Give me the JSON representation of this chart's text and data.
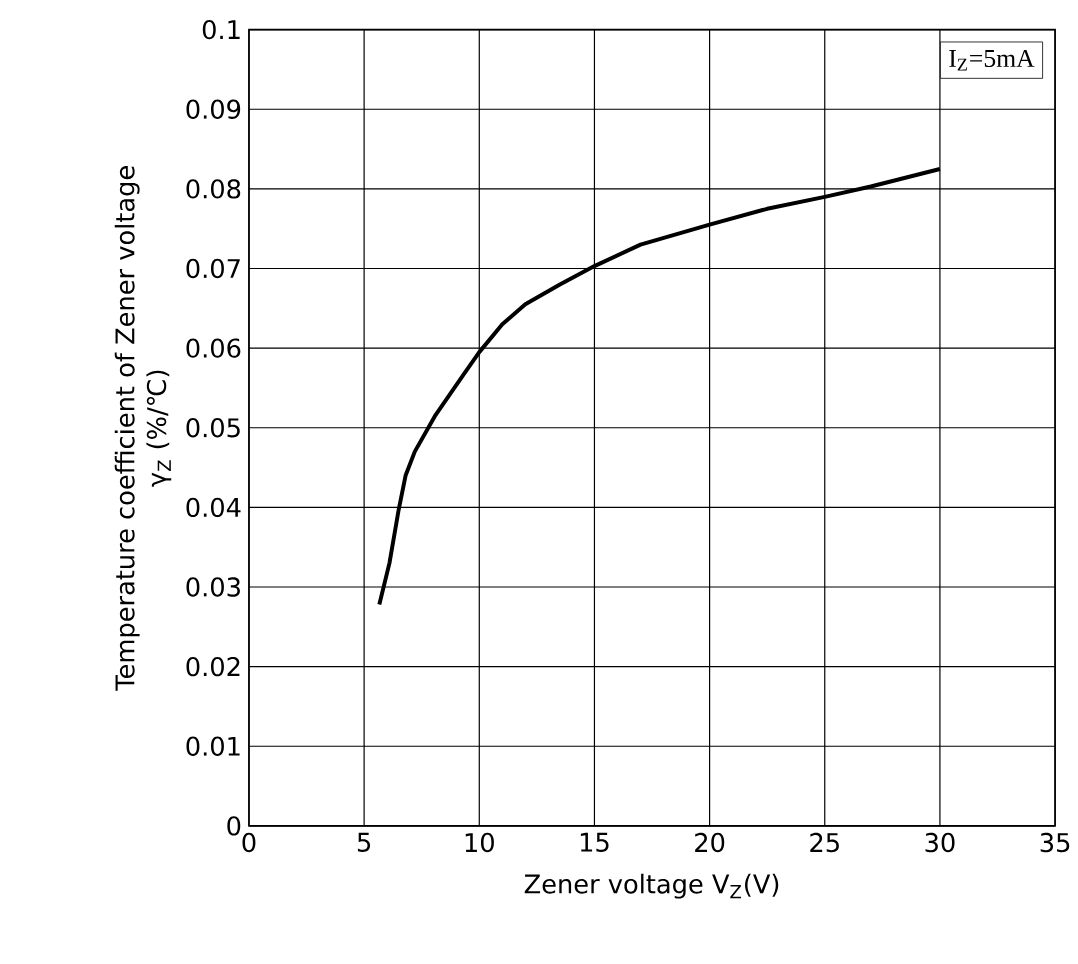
{
  "chart_data": {
    "type": "line",
    "ylabel": [
      "Temperature coefficient of Zener voltage",
      "γ$_{Z}$  (%/℃)"
    ],
    "xlabel": "Zener voltage   V$_{Z}$(V)",
    "annotations": [
      "I$_{Z}$=5mA"
    ],
    "x": [
      5.66,
      6.1,
      6.5,
      6.8,
      7.2,
      8.1,
      9.3,
      10.0,
      11.0,
      12.0,
      13.5,
      15.0,
      17.0,
      20.0,
      22.5,
      25.0,
      27.0,
      30.0
    ],
    "values": [
      0.0278,
      0.033,
      0.0397,
      0.044,
      0.047,
      0.0516,
      0.0566,
      0.0595,
      0.063,
      0.0655,
      0.068,
      0.0703,
      0.073,
      0.0755,
      0.0775,
      0.079,
      0.0803,
      0.0825
    ],
    "color": "#000000",
    "xlim": [
      0,
      35
    ],
    "ylim": [
      0,
      0.1
    ],
    "xticks": [
      0,
      5,
      10,
      15,
      20,
      25,
      30,
      35
    ],
    "yticks": [
      0,
      0.01,
      0.02,
      0.03,
      0.04,
      0.05,
      0.06,
      0.07,
      0.08,
      0.09,
      0.1
    ],
    "grid": true
  }
}
